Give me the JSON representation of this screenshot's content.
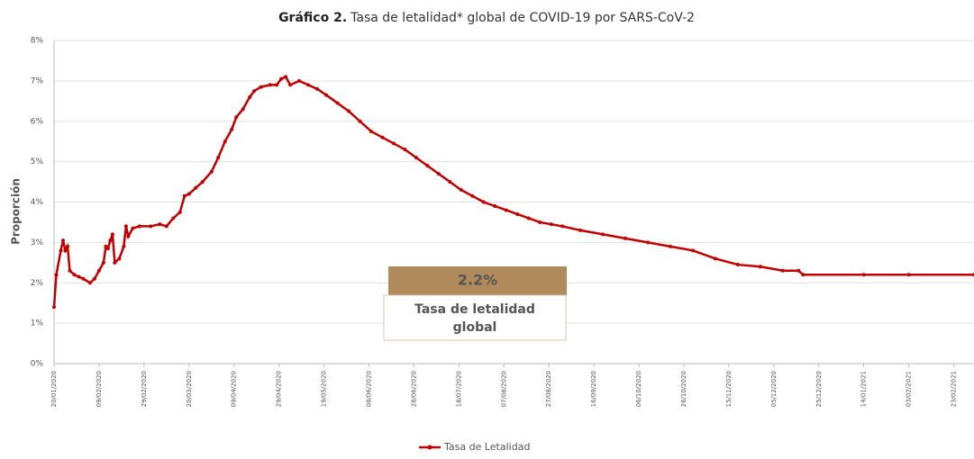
{
  "chart_data": {
    "type": "line",
    "title_bold": "Gráfico 2.",
    "title": "Tasa de letalidad* global de COVID-19 por SARS-CoV-2",
    "y_label": "Proporción",
    "annotation": {
      "value_label": "2.2%",
      "text": "Tasa de letalidad global"
    },
    "x": [
      "20/01/2020",
      "21/01/2020",
      "23/01/2020",
      "24/01/2020",
      "25/01/2020",
      "26/01/2020",
      "27/01/2020",
      "29/01/2020",
      "31/01/2020",
      "02/02/2020",
      "05/02/2020",
      "07/02/2020",
      "09/02/2020",
      "11/02/2020",
      "12/02/2020",
      "13/02/2020",
      "14/02/2020",
      "15/02/2020",
      "16/02/2020",
      "18/02/2020",
      "20/02/2020",
      "21/02/2020",
      "22/02/2020",
      "24/02/2020",
      "27/02/2020",
      "03/03/2020",
      "07/03/2020",
      "10/03/2020",
      "13/03/2020",
      "16/03/2020",
      "18/03/2020",
      "20/03/2020",
      "23/03/2020",
      "26/03/2020",
      "30/03/2020",
      "02/04/2020",
      "05/04/2020",
      "08/04/2020",
      "10/04/2020",
      "13/04/2020",
      "16/04/2020",
      "18/04/2020",
      "21/04/2020",
      "25/04/2020",
      "28/04/2020",
      "30/04/2020",
      "02/05/2020",
      "04/05/2020",
      "08/05/2020",
      "12/05/2020",
      "16/05/2020",
      "20/05/2020",
      "25/05/2020",
      "30/05/2020",
      "04/06/2020",
      "09/06/2020",
      "14/06/2020",
      "19/06/2020",
      "24/06/2020",
      "29/06/2020",
      "04/07/2020",
      "09/07/2020",
      "14/07/2020",
      "19/07/2020",
      "24/07/2020",
      "29/07/2020",
      "03/08/2020",
      "08/08/2020",
      "13/08/2020",
      "18/08/2020",
      "23/08/2020",
      "28/08/2020",
      "02/09/2020",
      "10/09/2020",
      "20/09/2020",
      "30/09/2020",
      "10/10/2020",
      "20/10/2020",
      "30/10/2020",
      "09/11/2020",
      "19/11/2020",
      "29/11/2020",
      "09/12/2020",
      "16/12/2020",
      "18/12/2020",
      "14/01/2021",
      "03/02/2021",
      "04/03/2021"
    ],
    "series": [
      {
        "name": "Tasa de Letalidad",
        "color": "#c00000",
        "values": [
          1.4,
          2.2,
          2.8,
          3.05,
          2.8,
          2.9,
          2.3,
          2.2,
          2.15,
          2.1,
          2.0,
          2.1,
          2.3,
          2.5,
          2.9,
          2.85,
          3.05,
          3.2,
          2.5,
          2.6,
          2.9,
          3.4,
          3.15,
          3.35,
          3.4,
          3.4,
          3.45,
          3.4,
          3.6,
          3.75,
          4.15,
          4.2,
          4.35,
          4.5,
          4.75,
          5.1,
          5.5,
          5.8,
          6.1,
          6.3,
          6.6,
          6.75,
          6.85,
          6.9,
          6.9,
          7.05,
          7.1,
          6.9,
          7.0,
          6.9,
          6.8,
          6.65,
          6.45,
          6.25,
          6.0,
          5.75,
          5.6,
          5.45,
          5.3,
          5.1,
          4.9,
          4.7,
          4.5,
          4.3,
          4.15,
          4.0,
          3.9,
          3.8,
          3.7,
          3.6,
          3.5,
          3.45,
          3.4,
          3.3,
          3.2,
          3.1,
          3.0,
          2.9,
          2.8,
          2.6,
          2.45,
          2.4,
          2.3,
          2.3,
          2.2,
          2.2,
          2.2,
          2.2
        ]
      }
    ],
    "xlim": [
      "20/01/2020",
      "04/03/2021"
    ],
    "xticks": [
      "20/01/2020",
      "09/02/2020",
      "29/02/2020",
      "20/03/2020",
      "09/04/2020",
      "29/04/2020",
      "19/05/2020",
      "08/06/2020",
      "28/06/2020",
      "18/07/2020",
      "07/08/2020",
      "27/08/2020",
      "16/09/2020",
      "06/10/2020",
      "26/10/2020",
      "15/11/2020",
      "05/12/2020",
      "25/12/2020",
      "14/01/2021",
      "03/02/2021",
      "23/02/2021"
    ],
    "ylim": [
      0,
      8
    ],
    "yticks": [
      {
        "value": 0,
        "label": "0%"
      },
      {
        "value": 1,
        "label": "1%"
      },
      {
        "value": 2,
        "label": "2%"
      },
      {
        "value": 3,
        "label": "3%"
      },
      {
        "value": 4,
        "label": "4%"
      },
      {
        "value": 5,
        "label": "5%"
      },
      {
        "value": 6,
        "label": "6%"
      },
      {
        "value": 7,
        "label": "7%"
      },
      {
        "value": 8,
        "label": "8%"
      }
    ],
    "grid": true,
    "legend": "bottom"
  }
}
